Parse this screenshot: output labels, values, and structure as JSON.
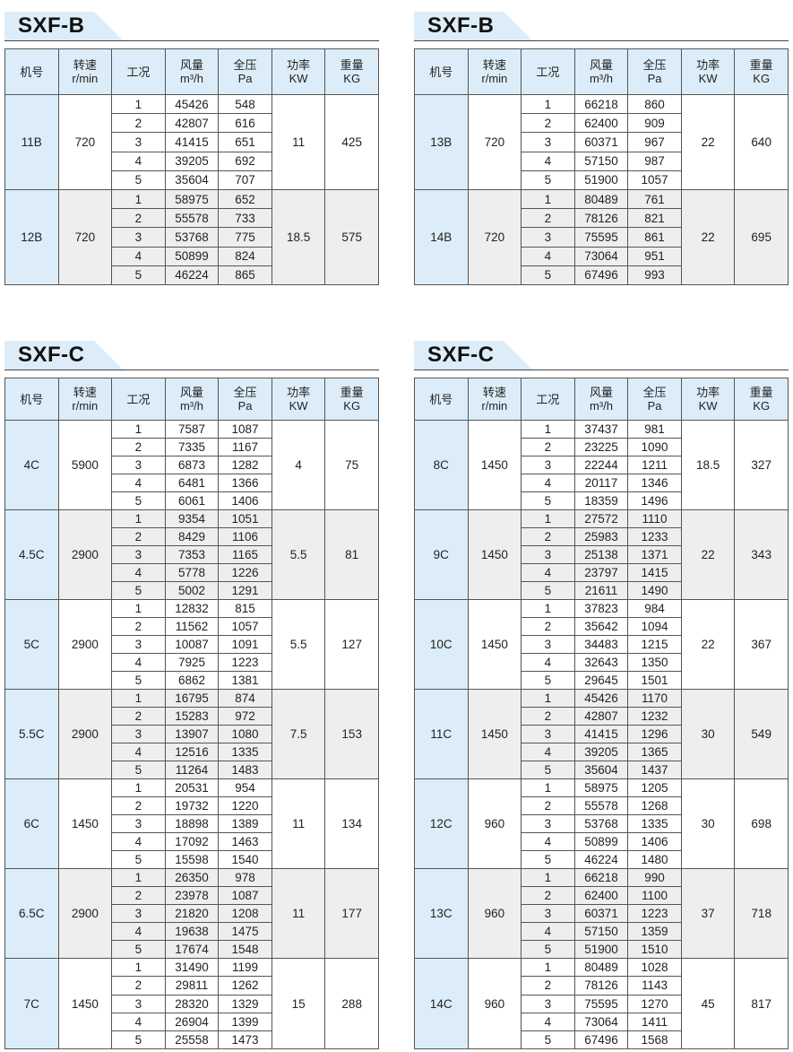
{
  "headers": [
    [
      "机号",
      ""
    ],
    [
      "转速",
      "r/min"
    ],
    [
      "工况",
      ""
    ],
    [
      "风量",
      "m³/h"
    ],
    [
      "全压",
      "Pa"
    ],
    [
      "功率",
      "KW"
    ],
    [
      "重量",
      "KG"
    ]
  ],
  "tables": [
    {
      "title": "SXF-B",
      "groups": [
        {
          "model": "11B",
          "speed": "720",
          "power": "11",
          "weight": "425",
          "rows": [
            [
              "1",
              "45426",
              "548"
            ],
            [
              "2",
              "42807",
              "616"
            ],
            [
              "3",
              "41415",
              "651"
            ],
            [
              "4",
              "39205",
              "692"
            ],
            [
              "5",
              "35604",
              "707"
            ]
          ]
        },
        {
          "model": "12B",
          "speed": "720",
          "power": "18.5",
          "weight": "575",
          "rows": [
            [
              "1",
              "58975",
              "652"
            ],
            [
              "2",
              "55578",
              "733"
            ],
            [
              "3",
              "53768",
              "775"
            ],
            [
              "4",
              "50899",
              "824"
            ],
            [
              "5",
              "46224",
              "865"
            ]
          ]
        }
      ]
    },
    {
      "title": "SXF-B",
      "groups": [
        {
          "model": "13B",
          "speed": "720",
          "power": "22",
          "weight": "640",
          "rows": [
            [
              "1",
              "66218",
              "860"
            ],
            [
              "2",
              "62400",
              "909"
            ],
            [
              "3",
              "60371",
              "967"
            ],
            [
              "4",
              "57150",
              "987"
            ],
            [
              "5",
              "51900",
              "1057"
            ]
          ]
        },
        {
          "model": "14B",
          "speed": "720",
          "power": "22",
          "weight": "695",
          "rows": [
            [
              "1",
              "80489",
              "761"
            ],
            [
              "2",
              "78126",
              "821"
            ],
            [
              "3",
              "75595",
              "861"
            ],
            [
              "4",
              "73064",
              "951"
            ],
            [
              "5",
              "67496",
              "993"
            ]
          ]
        }
      ]
    },
    {
      "title": "SXF-C",
      "groups": [
        {
          "model": "4C",
          "speed": "5900",
          "power": "4",
          "weight": "75",
          "rows": [
            [
              "1",
              "7587",
              "1087"
            ],
            [
              "2",
              "7335",
              "1167"
            ],
            [
              "3",
              "6873",
              "1282"
            ],
            [
              "4",
              "6481",
              "1366"
            ],
            [
              "5",
              "6061",
              "1406"
            ]
          ]
        },
        {
          "model": "4.5C",
          "speed": "2900",
          "power": "5.5",
          "weight": "81",
          "rows": [
            [
              "1",
              "9354",
              "1051"
            ],
            [
              "2",
              "8429",
              "1106"
            ],
            [
              "3",
              "7353",
              "1165"
            ],
            [
              "4",
              "5778",
              "1226"
            ],
            [
              "5",
              "5002",
              "1291"
            ]
          ]
        },
        {
          "model": "5C",
          "speed": "2900",
          "power": "5.5",
          "weight": "127",
          "rows": [
            [
              "1",
              "12832",
              "815"
            ],
            [
              "2",
              "11562",
              "1057"
            ],
            [
              "3",
              "10087",
              "1091"
            ],
            [
              "4",
              "7925",
              "1223"
            ],
            [
              "5",
              "6862",
              "1381"
            ]
          ]
        },
        {
          "model": "5.5C",
          "speed": "2900",
          "power": "7.5",
          "weight": "153",
          "rows": [
            [
              "1",
              "16795",
              "874"
            ],
            [
              "2",
              "15283",
              "972"
            ],
            [
              "3",
              "13907",
              "1080"
            ],
            [
              "4",
              "12516",
              "1335"
            ],
            [
              "5",
              "11264",
              "1483"
            ]
          ]
        },
        {
          "model": "6C",
          "speed": "1450",
          "power": "11",
          "weight": "134",
          "rows": [
            [
              "1",
              "20531",
              "954"
            ],
            [
              "2",
              "19732",
              "1220"
            ],
            [
              "3",
              "18898",
              "1389"
            ],
            [
              "4",
              "17092",
              "1463"
            ],
            [
              "5",
              "15598",
              "1540"
            ]
          ]
        },
        {
          "model": "6.5C",
          "speed": "2900",
          "power": "11",
          "weight": "177",
          "rows": [
            [
              "1",
              "26350",
              "978"
            ],
            [
              "2",
              "23978",
              "1087"
            ],
            [
              "3",
              "21820",
              "1208"
            ],
            [
              "4",
              "19638",
              "1475"
            ],
            [
              "5",
              "17674",
              "1548"
            ]
          ]
        },
        {
          "model": "7C",
          "speed": "1450",
          "power": "15",
          "weight": "288",
          "rows": [
            [
              "1",
              "31490",
              "1199"
            ],
            [
              "2",
              "29811",
              "1262"
            ],
            [
              "3",
              "28320",
              "1329"
            ],
            [
              "4",
              "26904",
              "1399"
            ],
            [
              "5",
              "25558",
              "1473"
            ]
          ]
        }
      ]
    },
    {
      "title": "SXF-C",
      "groups": [
        {
          "model": "8C",
          "speed": "1450",
          "power": "18.5",
          "weight": "327",
          "rows": [
            [
              "1",
              "37437",
              "981"
            ],
            [
              "2",
              "23225",
              "1090"
            ],
            [
              "3",
              "22244",
              "1211"
            ],
            [
              "4",
              "20117",
              "1346"
            ],
            [
              "5",
              "18359",
              "1496"
            ]
          ]
        },
        {
          "model": "9C",
          "speed": "1450",
          "power": "22",
          "weight": "343",
          "rows": [
            [
              "1",
              "27572",
              "1110"
            ],
            [
              "2",
              "25983",
              "1233"
            ],
            [
              "3",
              "25138",
              "1371"
            ],
            [
              "4",
              "23797",
              "1415"
            ],
            [
              "5",
              "21611",
              "1490"
            ]
          ]
        },
        {
          "model": "10C",
          "speed": "1450",
          "power": "22",
          "weight": "367",
          "rows": [
            [
              "1",
              "37823",
              "984"
            ],
            [
              "2",
              "35642",
              "1094"
            ],
            [
              "3",
              "34483",
              "1215"
            ],
            [
              "4",
              "32643",
              "1350"
            ],
            [
              "5",
              "29645",
              "1501"
            ]
          ]
        },
        {
          "model": "11C",
          "speed": "1450",
          "power": "30",
          "weight": "549",
          "rows": [
            [
              "1",
              "45426",
              "1170"
            ],
            [
              "2",
              "42807",
              "1232"
            ],
            [
              "3",
              "41415",
              "1296"
            ],
            [
              "4",
              "39205",
              "1365"
            ],
            [
              "5",
              "35604",
              "1437"
            ]
          ]
        },
        {
          "model": "12C",
          "speed": "960",
          "power": "30",
          "weight": "698",
          "rows": [
            [
              "1",
              "58975",
              "1205"
            ],
            [
              "2",
              "55578",
              "1268"
            ],
            [
              "3",
              "53768",
              "1335"
            ],
            [
              "4",
              "50899",
              "1406"
            ],
            [
              "5",
              "46224",
              "1480"
            ]
          ]
        },
        {
          "model": "13C",
          "speed": "960",
          "power": "37",
          "weight": "718",
          "rows": [
            [
              "1",
              "66218",
              "990"
            ],
            [
              "2",
              "62400",
              "1100"
            ],
            [
              "3",
              "60371",
              "1223"
            ],
            [
              "4",
              "57150",
              "1359"
            ],
            [
              "5",
              "51900",
              "1510"
            ]
          ]
        },
        {
          "model": "14C",
          "speed": "960",
          "power": "45",
          "weight": "817",
          "rows": [
            [
              "1",
              "80489",
              "1028"
            ],
            [
              "2",
              "78126",
              "1143"
            ],
            [
              "3",
              "75595",
              "1270"
            ],
            [
              "4",
              "73064",
              "1411"
            ],
            [
              "5",
              "67496",
              "1568"
            ]
          ]
        }
      ]
    }
  ]
}
